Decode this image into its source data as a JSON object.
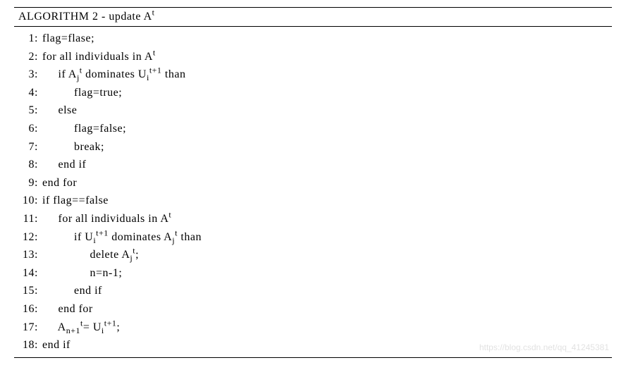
{
  "title_prefix": "ALGORITHM 2 - update A",
  "title_sup": "t",
  "watermark": "https://blog.csdn.net/qq_41245381",
  "indent_unit": "     ",
  "lines": [
    {
      "n": "1:",
      "indent": 0,
      "tokens": [
        {
          "t": "text",
          "v": "flag=flase;"
        }
      ]
    },
    {
      "n": "2:",
      "indent": 0,
      "tokens": [
        {
          "t": "text",
          "v": "for all individuals in A"
        },
        {
          "t": "sup",
          "v": "t"
        }
      ]
    },
    {
      "n": "3:",
      "indent": 1,
      "tokens": [
        {
          "t": "text",
          "v": "if A"
        },
        {
          "t": "sub",
          "v": "j"
        },
        {
          "t": "sup",
          "v": "t"
        },
        {
          "t": "text",
          "v": " dominates U"
        },
        {
          "t": "sub",
          "v": "i"
        },
        {
          "t": "sup",
          "v": "t+1"
        },
        {
          "t": "text",
          "v": " than"
        }
      ]
    },
    {
      "n": "4:",
      "indent": 2,
      "tokens": [
        {
          "t": "text",
          "v": "flag=true;"
        }
      ]
    },
    {
      "n": "5:",
      "indent": 1,
      "tokens": [
        {
          "t": "text",
          "v": "else"
        }
      ]
    },
    {
      "n": "6:",
      "indent": 2,
      "tokens": [
        {
          "t": "text",
          "v": "flag=false;"
        }
      ]
    },
    {
      "n": "7:",
      "indent": 2,
      "tokens": [
        {
          "t": "text",
          "v": "break;"
        }
      ]
    },
    {
      "n": "8:",
      "indent": 1,
      "tokens": [
        {
          "t": "text",
          "v": "end if"
        }
      ]
    },
    {
      "n": "9:",
      "indent": 0,
      "tokens": [
        {
          "t": "text",
          "v": "end for"
        }
      ]
    },
    {
      "n": "10:",
      "indent": 0,
      "tokens": [
        {
          "t": "text",
          "v": "if flag==false"
        }
      ]
    },
    {
      "n": "11:",
      "indent": 1,
      "tokens": [
        {
          "t": "text",
          "v": "for all individuals in A"
        },
        {
          "t": "sup",
          "v": "t"
        }
      ]
    },
    {
      "n": "12:",
      "indent": 2,
      "tokens": [
        {
          "t": "text",
          "v": "if U"
        },
        {
          "t": "sub",
          "v": "i"
        },
        {
          "t": "sup",
          "v": "t+1"
        },
        {
          "t": "text",
          "v": " dominates A"
        },
        {
          "t": "sub",
          "v": "j"
        },
        {
          "t": "sup",
          "v": "t"
        },
        {
          "t": "text",
          "v": " than"
        }
      ]
    },
    {
      "n": "13:",
      "indent": 3,
      "tokens": [
        {
          "t": "text",
          "v": "delete A"
        },
        {
          "t": "sub",
          "v": "j"
        },
        {
          "t": "sup",
          "v": "t"
        },
        {
          "t": "text",
          "v": ";"
        }
      ]
    },
    {
      "n": "14:",
      "indent": 3,
      "tokens": [
        {
          "t": "text",
          "v": "n=n-1;"
        }
      ]
    },
    {
      "n": "15:",
      "indent": 2,
      "tokens": [
        {
          "t": "text",
          "v": "end if"
        }
      ]
    },
    {
      "n": "16:",
      "indent": 1,
      "tokens": [
        {
          "t": "text",
          "v": "end for"
        }
      ]
    },
    {
      "n": "17:",
      "indent": 1,
      "tokens": [
        {
          "t": "text",
          "v": "A"
        },
        {
          "t": "sub",
          "v": "n+1"
        },
        {
          "t": "sup",
          "v": "t"
        },
        {
          "t": "text",
          "v": "= U"
        },
        {
          "t": "sub",
          "v": "i"
        },
        {
          "t": "sup",
          "v": "t+1"
        },
        {
          "t": "text",
          "v": ";"
        }
      ]
    },
    {
      "n": "18:",
      "indent": 0,
      "tokens": [
        {
          "t": "text",
          "v": "end if"
        }
      ]
    }
  ]
}
